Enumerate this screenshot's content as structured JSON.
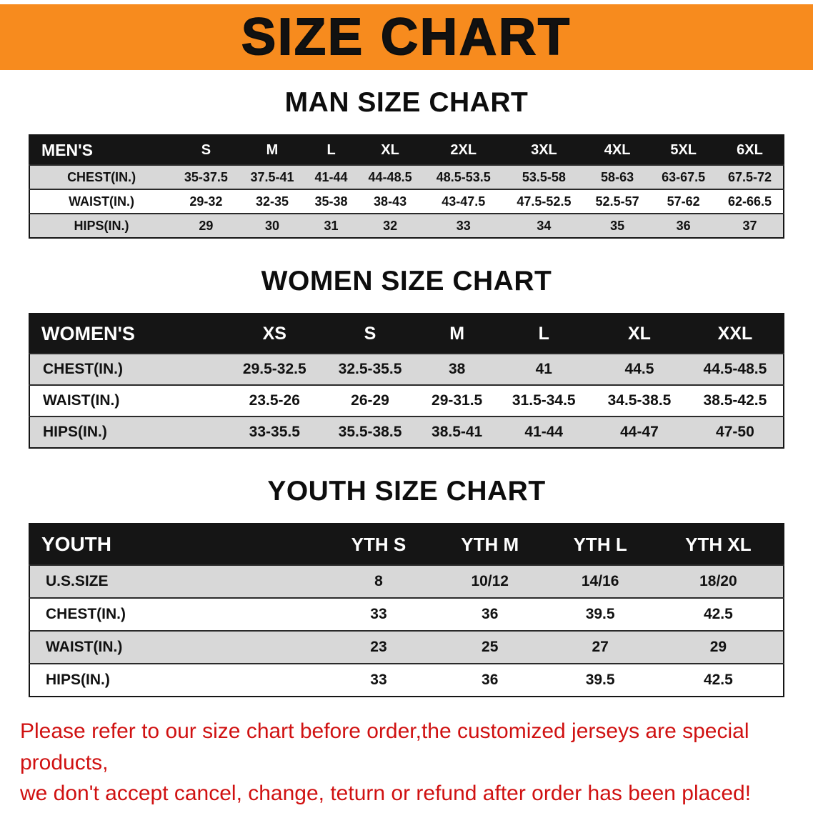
{
  "banner": {
    "title": "SIZE CHART"
  },
  "sections": [
    {
      "id": "men",
      "heading": "MAN SIZE CHART",
      "table": {
        "header": [
          "MEN'S",
          "S",
          "M",
          "L",
          "XL",
          "2XL",
          "3XL",
          "4XL",
          "5XL",
          "6XL"
        ],
        "rows": [
          [
            "CHEST(IN.)",
            "35-37.5",
            "37.5-41",
            "41-44",
            "44-48.5",
            "48.5-53.5",
            "53.5-58",
            "58-63",
            "63-67.5",
            "67.5-72"
          ],
          [
            "WAIST(IN.)",
            "29-32",
            "32-35",
            "35-38",
            "38-43",
            "43-47.5",
            "47.5-52.5",
            "52.5-57",
            "57-62",
            "62-66.5"
          ],
          [
            "HIPS(IN.)",
            "29",
            "30",
            "31",
            "32",
            "33",
            "34",
            "35",
            "36",
            "37"
          ]
        ]
      }
    },
    {
      "id": "women",
      "heading": "WOMEN SIZE CHART",
      "table": {
        "header": [
          "WOMEN'S",
          "XS",
          "S",
          "M",
          "L",
          "XL",
          "XXL"
        ],
        "rows": [
          [
            "CHEST(IN.)",
            "29.5-32.5",
            "32.5-35.5",
            "38",
            "41",
            "44.5",
            "44.5-48.5"
          ],
          [
            "WAIST(IN.)",
            "23.5-26",
            "26-29",
            "29-31.5",
            "31.5-34.5",
            "34.5-38.5",
            "38.5-42.5"
          ],
          [
            "HIPS(IN.)",
            "33-35.5",
            "35.5-38.5",
            "38.5-41",
            "41-44",
            "44-47",
            "47-50"
          ]
        ]
      }
    },
    {
      "id": "youth",
      "heading": "YOUTH SIZE CHART",
      "table": {
        "header": [
          "YOUTH",
          "YTH S",
          "YTH M",
          "YTH L",
          "YTH XL"
        ],
        "rows": [
          [
            "U.S.SIZE",
            "8",
            "10/12",
            "14/16",
            "18/20"
          ],
          [
            "CHEST(IN.)",
            "33",
            "36",
            "39.5",
            "42.5"
          ],
          [
            "WAIST(IN.)",
            "23",
            "25",
            "27",
            "29"
          ],
          [
            "HIPS(IN.)",
            "33",
            "36",
            "39.5",
            "42.5"
          ]
        ]
      }
    }
  ],
  "footer": {
    "line1": "Please refer to our size chart before order,the customized jerseys are special products,",
    "line2": "we don't accept cancel, change, teturn or refund after order has been placed!"
  },
  "colors": {
    "banner_bg": "#f78b1e",
    "header_row_bg": "#151515",
    "alt_row_bg": "#d8d8d8",
    "notice_text": "#d01111",
    "title_text": "#111111"
  }
}
